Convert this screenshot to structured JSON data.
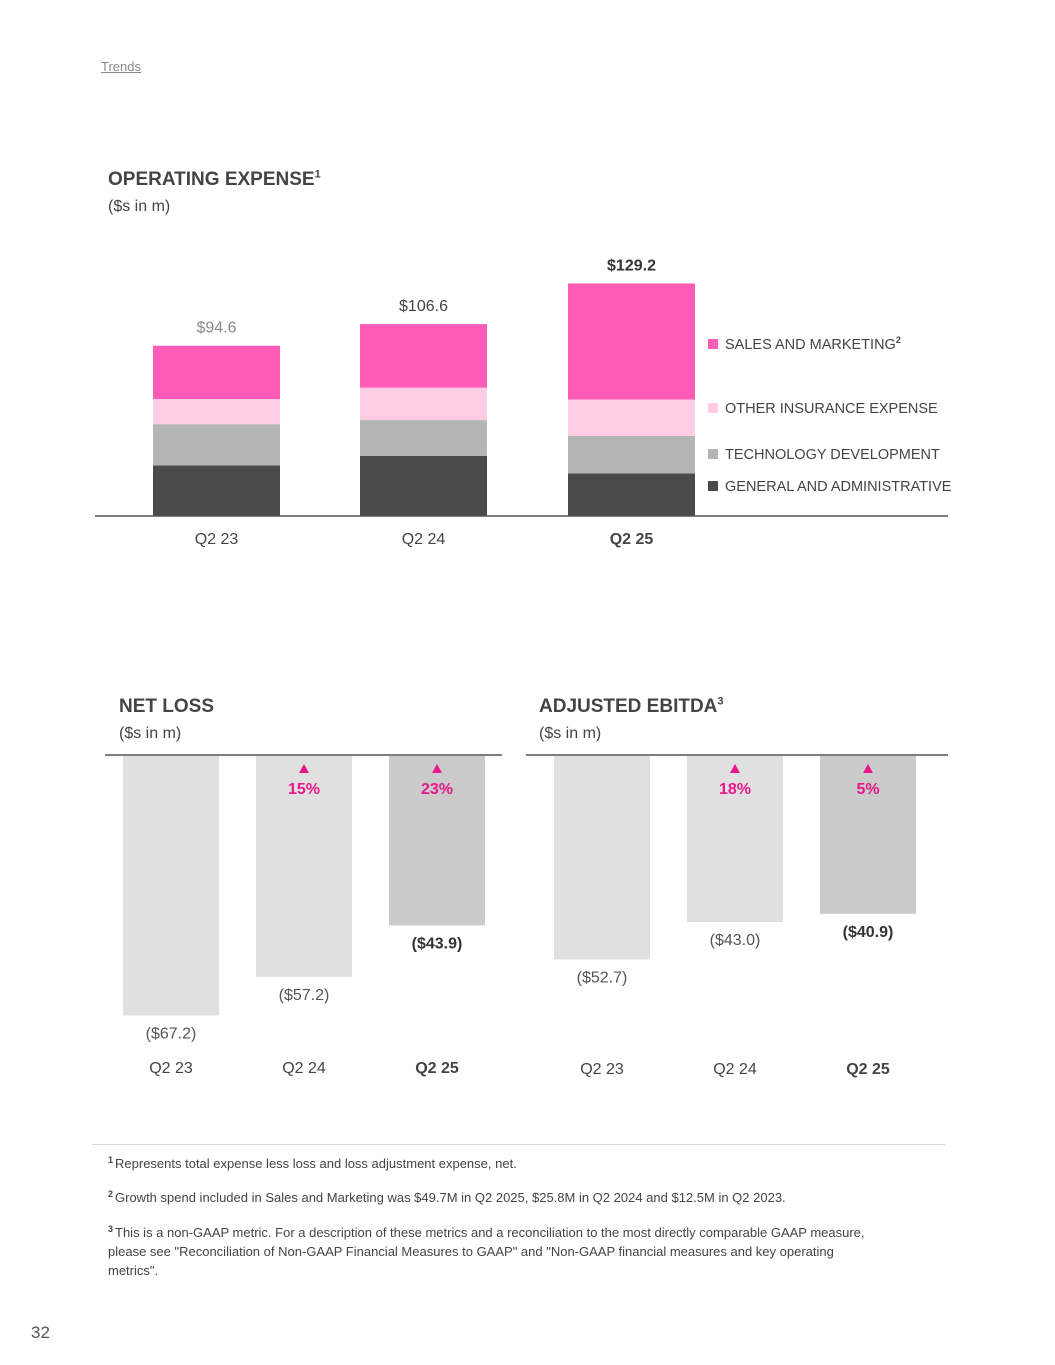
{
  "breadcrumb": "Trends",
  "page_number": "32",
  "colors": {
    "pink": "#ff5cb8",
    "light_pink": "#ffcce4",
    "gray": "#b5b5b5",
    "dark_gray": "#4a4a4a",
    "bar_light": "#e0e0e0",
    "bar_current": "#cbcbcb",
    "accent": "#e8178a"
  },
  "chart_data": [
    {
      "id": "operating_expense",
      "type": "bar",
      "stacked": true,
      "title": "OPERATING EXPENSE",
      "title_footnote": "1",
      "subtitle": "($s in m)",
      "categories": [
        "Q2 23",
        "Q2 24",
        "Q2 25"
      ],
      "highlight_category": "Q2 25",
      "totals": [
        94.6,
        106.6,
        129.2
      ],
      "total_labels": [
        "$94.6",
        "$106.6",
        "$129.2"
      ],
      "series": [
        {
          "name": "GENERAL AND ADMINISTRATIVE",
          "values": [
            28.1,
            33.4,
            23.6
          ]
        },
        {
          "name": "TECHNOLOGY DEVELOPMENT",
          "values": [
            22.9,
            19.9,
            20.9
          ]
        },
        {
          "name": "OTHER INSURANCE EXPENSE",
          "values": [
            14.0,
            18.0,
            20.2
          ]
        },
        {
          "name": "SALES AND MARKETING",
          "footnote": "2",
          "values": [
            29.6,
            35.3,
            64.5
          ]
        }
      ],
      "ylim": [
        0,
        150
      ]
    },
    {
      "id": "net_loss",
      "type": "bar",
      "title": "NET LOSS",
      "subtitle": "($s in m)",
      "categories": [
        "Q2 23",
        "Q2 24",
        "Q2 25"
      ],
      "highlight_category": "Q2 25",
      "values": [
        -67.2,
        -57.2,
        -43.9
      ],
      "value_labels": [
        "($67.2)",
        "($57.2)",
        "($43.9)"
      ],
      "improvements": [
        "",
        "15%",
        "23%"
      ],
      "ylim": [
        -70,
        0
      ]
    },
    {
      "id": "adjusted_ebitda",
      "type": "bar",
      "title": "ADJUSTED EBITDA",
      "title_footnote": "3",
      "subtitle": "($s in m)",
      "categories": [
        "Q2 23",
        "Q2 24",
        "Q2 25"
      ],
      "highlight_category": "Q2 25",
      "values": [
        -52.7,
        -43.0,
        -40.9
      ],
      "value_labels": [
        "($52.7)",
        "($43.0)",
        "($40.9)"
      ],
      "improvements": [
        "",
        "18%",
        "5%"
      ],
      "ylim": [
        -70,
        0
      ]
    }
  ],
  "footnotes": [
    {
      "mark": "1",
      "text": "Represents total expense less loss and loss adjustment expense, net."
    },
    {
      "mark": "2",
      "text": "Growth spend included in Sales and Marketing was $49.7M in Q2 2025, $25.8M in Q2 2024 and $12.5M in Q2 2023."
    },
    {
      "mark": "3",
      "text": "This is a non-GAAP metric. For a description of these metrics and a reconciliation to the most directly comparable GAAP measure, please see \"Reconciliation of Non-GAAP Financial Measures to GAAP\" and \"Non-GAAP financial measures and key operating metrics\"."
    }
  ]
}
